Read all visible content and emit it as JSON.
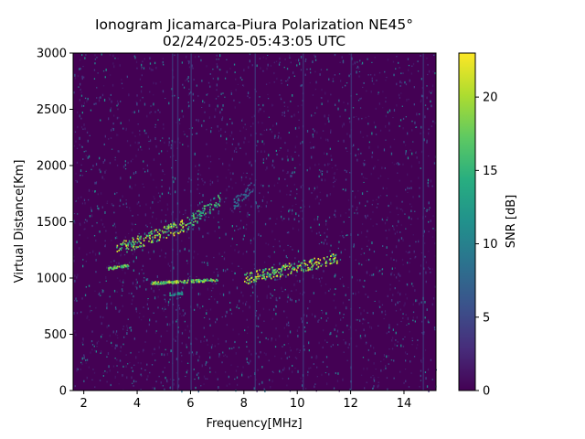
{
  "chart_data": {
    "type": "heatmap",
    "title": "Ionogram Jicamarca-Piura Polarization NE45°",
    "subtitle": "02/24/2025-05:43:05 UTC",
    "xlabel": "Frequency[MHz]",
    "ylabel": "Virtual Distance[Km]",
    "colorbar_label": "SNR [dB]",
    "xlim": [
      1.6,
      15.2
    ],
    "ylim": [
      0,
      3000
    ],
    "x_ticks": [
      2,
      4,
      6,
      8,
      10,
      12,
      14
    ],
    "y_ticks": [
      0,
      500,
      1000,
      1500,
      2000,
      2500,
      3000
    ],
    "colorbar_range": [
      0,
      23
    ],
    "colorbar_ticks": [
      0,
      5,
      10,
      15,
      20
    ],
    "colormap": "viridis",
    "echo_traces": [
      {
        "freq_start_mhz": 3.2,
        "freq_end_mhz": 5.8,
        "range_start_km": 1260,
        "range_end_km": 1480,
        "snr_db": 22
      },
      {
        "freq_start_mhz": 5.8,
        "freq_end_mhz": 7.1,
        "range_start_km": 1480,
        "range_end_km": 1700,
        "snr_db": 18
      },
      {
        "freq_start_mhz": 7.6,
        "freq_end_mhz": 8.4,
        "range_start_km": 1660,
        "range_end_km": 1840,
        "snr_db": 9
      },
      {
        "freq_start_mhz": 2.9,
        "freq_end_mhz": 3.7,
        "range_start_km": 1090,
        "range_end_km": 1120,
        "snr_db": 21
      },
      {
        "freq_start_mhz": 4.5,
        "freq_end_mhz": 7.0,
        "range_start_km": 960,
        "range_end_km": 990,
        "snr_db": 21
      },
      {
        "freq_start_mhz": 8.0,
        "freq_end_mhz": 11.5,
        "range_start_km": 1000,
        "range_end_km": 1180,
        "snr_db": 22
      },
      {
        "freq_start_mhz": 5.2,
        "freq_end_mhz": 5.7,
        "range_start_km": 860,
        "range_end_km": 870,
        "snr_db": 14
      }
    ]
  }
}
